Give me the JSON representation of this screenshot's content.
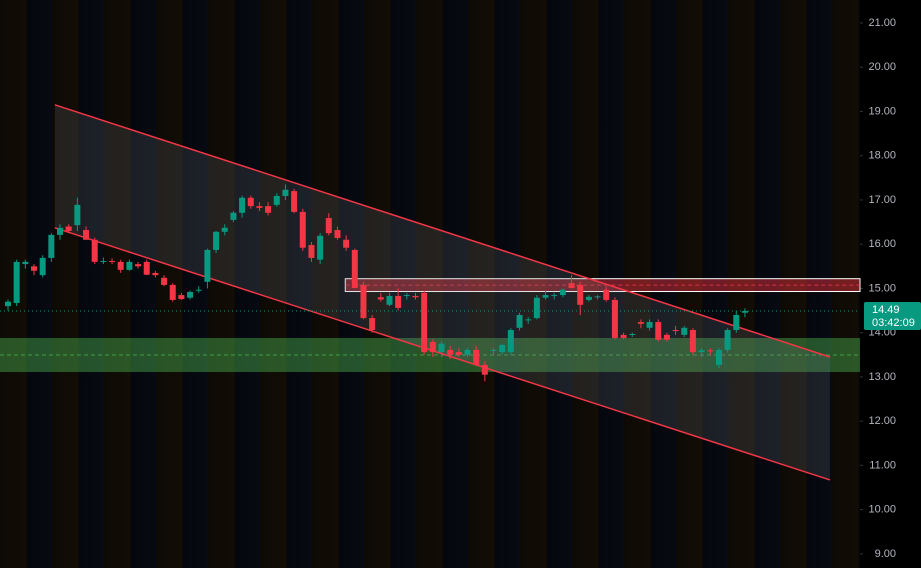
{
  "chart_data": {
    "type": "candlestick",
    "up_color": "#089981",
    "down_color": "#f23645",
    "ylim": [
      8.68,
      21.52
    ],
    "yticks": [
      {
        "value": 21,
        "label": "21.00"
      },
      {
        "value": 20,
        "label": "20.00"
      },
      {
        "value": 19,
        "label": "19.00"
      },
      {
        "value": 18,
        "label": "18.00"
      },
      {
        "value": 17,
        "label": "17.00"
      },
      {
        "value": 16,
        "label": "16.00"
      },
      {
        "value": 15,
        "label": "15.00"
      },
      {
        "value": 14,
        "label": "14.00"
      },
      {
        "value": 13,
        "label": "13.00"
      },
      {
        "value": 12,
        "label": "12.00"
      },
      {
        "value": 11,
        "label": "11.00"
      },
      {
        "value": 10,
        "label": "10.00"
      },
      {
        "value": 9,
        "label": "9.00"
      }
    ],
    "last_price": 14.49,
    "countdown": "03:42:09",
    "candles": [
      [
        14.6,
        14.75,
        14.5,
        14.7
      ],
      [
        14.67,
        15.65,
        14.6,
        15.6
      ],
      [
        15.55,
        15.65,
        15.45,
        15.6
      ],
      [
        15.5,
        15.55,
        15.3,
        15.4
      ],
      [
        15.3,
        15.75,
        15.25,
        15.69
      ],
      [
        15.69,
        16.25,
        15.6,
        16.21
      ],
      [
        16.21,
        16.45,
        16.1,
        16.37
      ],
      [
        16.4,
        16.45,
        16.25,
        16.3
      ],
      [
        16.43,
        17.05,
        16.3,
        16.89
      ],
      [
        16.32,
        16.4,
        16.1,
        16.1
      ],
      [
        16.1,
        16.15,
        15.55,
        15.6
      ],
      [
        15.6,
        15.7,
        15.55,
        15.62
      ],
      [
        15.62,
        15.68,
        15.55,
        15.6
      ],
      [
        15.6,
        15.65,
        15.35,
        15.42
      ],
      [
        15.42,
        15.65,
        15.4,
        15.6
      ],
      [
        15.55,
        15.6,
        15.45,
        15.5
      ],
      [
        15.6,
        15.65,
        15.3,
        15.31
      ],
      [
        15.35,
        15.4,
        15.25,
        15.3
      ],
      [
        15.24,
        15.3,
        15.05,
        15.08
      ],
      [
        15.08,
        15.12,
        14.7,
        14.74
      ],
      [
        14.85,
        14.9,
        14.74,
        14.76
      ],
      [
        14.79,
        14.95,
        14.75,
        14.92
      ],
      [
        14.95,
        15.05,
        14.9,
        14.97
      ],
      [
        15.15,
        15.9,
        15.0,
        15.87
      ],
      [
        15.87,
        16.3,
        15.8,
        16.28
      ],
      [
        16.28,
        16.45,
        16.2,
        16.37
      ],
      [
        16.55,
        16.75,
        16.5,
        16.71
      ],
      [
        16.71,
        17.1,
        16.6,
        17.05
      ],
      [
        17.05,
        17.1,
        16.8,
        16.86
      ],
      [
        16.86,
        16.95,
        16.75,
        16.82
      ],
      [
        16.86,
        16.95,
        16.65,
        16.71
      ],
      [
        16.89,
        17.15,
        16.85,
        17.09
      ],
      [
        17.09,
        17.35,
        17.0,
        17.23
      ],
      [
        17.2,
        17.25,
        16.7,
        16.73
      ],
      [
        16.73,
        16.8,
        15.85,
        15.92
      ],
      [
        15.98,
        16.05,
        15.6,
        15.69
      ],
      [
        15.65,
        16.25,
        15.55,
        16.19
      ],
      [
        16.59,
        16.7,
        16.2,
        16.25
      ],
      [
        16.32,
        16.4,
        16.1,
        16.14
      ],
      [
        16.1,
        16.2,
        15.85,
        15.92
      ],
      [
        15.87,
        15.9,
        15.0,
        15.01
      ],
      [
        15.08,
        15.15,
        14.3,
        14.33
      ],
      [
        14.33,
        14.4,
        14.0,
        14.06
      ],
      [
        14.8,
        14.9,
        14.7,
        14.75
      ],
      [
        14.63,
        14.9,
        14.6,
        14.83
      ],
      [
        14.83,
        15.0,
        14.5,
        14.56
      ],
      [
        14.83,
        14.9,
        14.75,
        14.85
      ],
      [
        14.83,
        14.9,
        14.75,
        14.8
      ],
      [
        14.9,
        14.95,
        13.5,
        13.56
      ],
      [
        13.79,
        13.85,
        13.45,
        13.56
      ],
      [
        13.56,
        13.8,
        13.45,
        13.75
      ],
      [
        13.61,
        13.7,
        13.4,
        13.5
      ],
      [
        13.56,
        13.65,
        13.45,
        13.5
      ],
      [
        13.5,
        13.65,
        13.45,
        13.61
      ],
      [
        13.61,
        13.7,
        13.25,
        13.27
      ],
      [
        13.27,
        13.35,
        12.9,
        13.05
      ],
      [
        13.6,
        13.65,
        13.5,
        13.61
      ],
      [
        13.56,
        13.75,
        13.5,
        13.72
      ],
      [
        13.56,
        14.1,
        13.5,
        14.06
      ],
      [
        14.11,
        14.45,
        14.05,
        14.4
      ],
      [
        14.29,
        14.35,
        14.2,
        14.3
      ],
      [
        14.33,
        14.85,
        14.3,
        14.79
      ],
      [
        14.79,
        14.95,
        14.75,
        14.85
      ],
      [
        14.83,
        14.9,
        14.75,
        14.85
      ],
      [
        14.85,
        15.0,
        14.8,
        14.97
      ],
      [
        15.12,
        15.3,
        15.0,
        15.01
      ],
      [
        15.08,
        15.15,
        14.4,
        14.63
      ],
      [
        14.74,
        14.85,
        14.7,
        14.81
      ],
      [
        14.81,
        14.85,
        14.75,
        14.82
      ],
      [
        14.97,
        15.05,
        14.7,
        14.74
      ],
      [
        14.74,
        14.8,
        13.85,
        13.88
      ],
      [
        13.95,
        14.0,
        13.85,
        13.88
      ],
      [
        13.95,
        14.0,
        13.9,
        13.97
      ],
      [
        14.24,
        14.3,
        14.1,
        14.2
      ],
      [
        14.11,
        14.3,
        14.05,
        14.24
      ],
      [
        14.24,
        14.3,
        13.8,
        13.84
      ],
      [
        13.95,
        14.0,
        13.8,
        13.84
      ],
      [
        14.06,
        14.15,
        13.95,
        14.05
      ],
      [
        13.95,
        14.15,
        13.9,
        14.11
      ],
      [
        14.06,
        14.1,
        13.5,
        13.56
      ],
      [
        13.56,
        13.65,
        13.45,
        13.6
      ],
      [
        13.6,
        13.65,
        13.5,
        13.58
      ],
      [
        13.27,
        13.65,
        13.2,
        13.61
      ],
      [
        13.61,
        14.1,
        13.55,
        14.06
      ],
      [
        14.06,
        14.5,
        14.0,
        14.4
      ],
      [
        14.45,
        14.55,
        14.35,
        14.49
      ]
    ],
    "zones": [
      {
        "low": 14.93,
        "high": 15.22,
        "start": 38.9,
        "color": "#f23645"
      },
      {
        "low": 13.11,
        "high": 13.88,
        "start": -1,
        "color": "#4caf50"
      }
    ],
    "channel": {
      "start": 5.4,
      "end": 94.8,
      "upper": [
        19.15,
        13.45
      ],
      "lower": [
        16.37,
        10.67
      ],
      "color": "#f23645"
    }
  }
}
